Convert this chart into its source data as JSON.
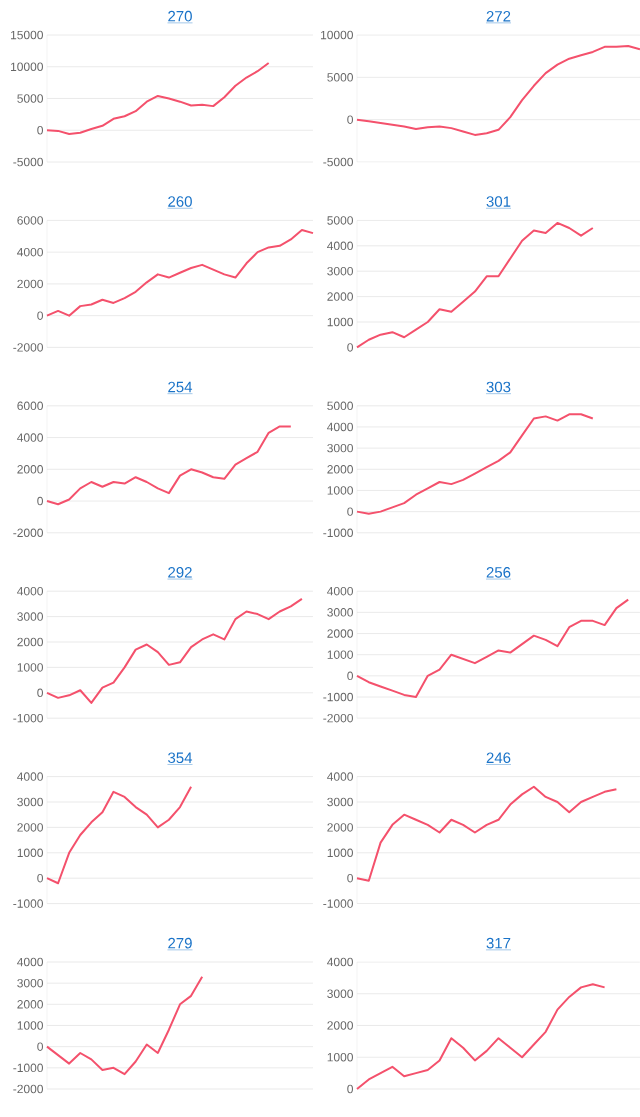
{
  "chart_data": [
    {
      "type": "line",
      "title": "270",
      "categories": [
        null,
        null,
        null,
        null,
        null,
        null,
        null,
        null,
        null,
        null,
        null,
        null,
        null,
        null,
        null,
        null,
        null,
        null,
        null,
        null,
        null,
        null,
        null,
        null,
        null
      ],
      "values": [
        0,
        -100,
        -600,
        -400,
        200,
        700,
        1800,
        2200,
        3000,
        4500,
        5400,
        5000,
        4500,
        3900,
        4000,
        3800,
        5200,
        7000,
        8300,
        9300,
        10600,
        null,
        null,
        null,
        null
      ],
      "color": "#f4516c",
      "ylim": [
        -5000,
        15000
      ],
      "yticks": [
        -5000,
        0,
        5000,
        10000,
        15000
      ],
      "grid": "y",
      "tick_labels": "y"
    },
    {
      "type": "line",
      "title": "272",
      "categories": [
        null,
        null,
        null,
        null,
        null,
        null,
        null,
        null,
        null,
        null,
        null,
        null,
        null,
        null,
        null,
        null,
        null,
        null,
        null,
        null,
        null,
        null,
        null,
        null,
        null
      ],
      "values": [
        0,
        -200,
        -400,
        -600,
        -800,
        -1100,
        -900,
        -800,
        -1000,
        -1400,
        -1800,
        -1600,
        -1200,
        300,
        2300,
        4000,
        5500,
        6500,
        7200,
        7600,
        8000,
        8600,
        8600,
        8700,
        8300
      ],
      "color": "#f4516c",
      "ylim": [
        -5000,
        10000
      ],
      "yticks": [
        -5000,
        0,
        5000,
        10000
      ],
      "grid": "y",
      "tick_labels": "y"
    },
    {
      "type": "line",
      "title": "260",
      "categories": [
        null,
        null,
        null,
        null,
        null,
        null,
        null,
        null,
        null,
        null,
        null,
        null,
        null,
        null,
        null,
        null,
        null,
        null,
        null,
        null,
        null,
        null,
        null,
        null,
        null
      ],
      "values": [
        0,
        300,
        0,
        600,
        700,
        1000,
        800,
        1100,
        1500,
        2100,
        2600,
        2400,
        2700,
        3000,
        3200,
        2900,
        2600,
        2400,
        3300,
        4000,
        4300,
        4400,
        4800,
        5400,
        5200
      ],
      "color": "#f4516c",
      "ylim": [
        -2000,
        6000
      ],
      "yticks": [
        -2000,
        0,
        2000,
        4000,
        6000
      ],
      "grid": "y",
      "tick_labels": "y"
    },
    {
      "type": "line",
      "title": "301",
      "categories": [
        null,
        null,
        null,
        null,
        null,
        null,
        null,
        null,
        null,
        null,
        null,
        null,
        null,
        null,
        null,
        null,
        null,
        null,
        null,
        null,
        null,
        null,
        null,
        null,
        null
      ],
      "values": [
        0,
        300,
        500,
        600,
        400,
        700,
        1000,
        1500,
        1400,
        1800,
        2200,
        2800,
        2800,
        3500,
        4200,
        4600,
        4500,
        4900,
        4700,
        4400,
        4700,
        null,
        null,
        null,
        null
      ],
      "color": "#f4516c",
      "ylim": [
        0,
        5000
      ],
      "yticks": [
        0,
        1000,
        2000,
        3000,
        4000,
        5000
      ],
      "grid": "y",
      "tick_labels": "y"
    },
    {
      "type": "line",
      "title": "254",
      "categories": [
        null,
        null,
        null,
        null,
        null,
        null,
        null,
        null,
        null,
        null,
        null,
        null,
        null,
        null,
        null,
        null,
        null,
        null,
        null,
        null,
        null,
        null,
        null,
        null,
        null
      ],
      "values": [
        0,
        -200,
        100,
        800,
        1200,
        900,
        1200,
        1100,
        1500,
        1200,
        800,
        500,
        1600,
        2000,
        1800,
        1500,
        1400,
        2300,
        2700,
        3100,
        4300,
        4700,
        4700,
        null,
        null
      ],
      "color": "#f4516c",
      "ylim": [
        -2000,
        6000
      ],
      "yticks": [
        -2000,
        0,
        2000,
        4000,
        6000
      ],
      "grid": "y",
      "tick_labels": "y"
    },
    {
      "type": "line",
      "title": "303",
      "categories": [
        null,
        null,
        null,
        null,
        null,
        null,
        null,
        null,
        null,
        null,
        null,
        null,
        null,
        null,
        null,
        null,
        null,
        null,
        null,
        null,
        null,
        null,
        null,
        null,
        null
      ],
      "values": [
        0,
        -100,
        0,
        200,
        400,
        800,
        1100,
        1400,
        1300,
        1500,
        1800,
        2100,
        2400,
        2800,
        3600,
        4400,
        4500,
        4300,
        4600,
        4600,
        4400,
        null,
        null,
        null,
        null
      ],
      "color": "#f4516c",
      "ylim": [
        -1000,
        5000
      ],
      "yticks": [
        -1000,
        0,
        1000,
        2000,
        3000,
        4000,
        5000
      ],
      "grid": "y",
      "tick_labels": "y"
    },
    {
      "type": "line",
      "title": "292",
      "categories": [
        null,
        null,
        null,
        null,
        null,
        null,
        null,
        null,
        null,
        null,
        null,
        null,
        null,
        null,
        null,
        null,
        null,
        null,
        null,
        null,
        null,
        null,
        null,
        null,
        null
      ],
      "values": [
        0,
        -200,
        -100,
        100,
        -400,
        200,
        400,
        1000,
        1700,
        1900,
        1600,
        1100,
        1200,
        1800,
        2100,
        2300,
        2100,
        2900,
        3200,
        3100,
        2900,
        3200,
        3400,
        3700,
        null
      ],
      "color": "#f4516c",
      "ylim": [
        -1000,
        4000
      ],
      "yticks": [
        -1000,
        0,
        1000,
        2000,
        3000,
        4000
      ],
      "grid": "y",
      "tick_labels": "y"
    },
    {
      "type": "line",
      "title": "256",
      "categories": [
        null,
        null,
        null,
        null,
        null,
        null,
        null,
        null,
        null,
        null,
        null,
        null,
        null,
        null,
        null,
        null,
        null,
        null,
        null,
        null,
        null,
        null,
        null,
        null,
        null
      ],
      "values": [
        0,
        -300,
        -500,
        -700,
        -900,
        -1000,
        0,
        300,
        1000,
        800,
        600,
        900,
        1200,
        1100,
        1500,
        1900,
        1700,
        1400,
        2300,
        2600,
        2600,
        2400,
        3200,
        3600,
        null
      ],
      "color": "#f4516c",
      "ylim": [
        -2000,
        4000
      ],
      "yticks": [
        -2000,
        -1000,
        0,
        1000,
        2000,
        3000,
        4000
      ],
      "grid": "y",
      "tick_labels": "y"
    },
    {
      "type": "line",
      "title": "354",
      "categories": [
        null,
        null,
        null,
        null,
        null,
        null,
        null,
        null,
        null,
        null,
        null,
        null,
        null,
        null,
        null,
        null,
        null,
        null,
        null,
        null,
        null,
        null,
        null,
        null,
        null
      ],
      "values": [
        0,
        -200,
        1000,
        1700,
        2200,
        2600,
        3400,
        3200,
        2800,
        2500,
        2000,
        2300,
        2800,
        3600,
        null,
        null,
        null,
        null,
        null,
        null,
        null,
        null,
        null,
        null,
        null
      ],
      "color": "#f4516c",
      "ylim": [
        -1000,
        4000
      ],
      "yticks": [
        -1000,
        0,
        1000,
        2000,
        3000,
        4000
      ],
      "grid": "y",
      "tick_labels": "y"
    },
    {
      "type": "line",
      "title": "246",
      "categories": [
        null,
        null,
        null,
        null,
        null,
        null,
        null,
        null,
        null,
        null,
        null,
        null,
        null,
        null,
        null,
        null,
        null,
        null,
        null,
        null,
        null,
        null,
        null,
        null,
        null
      ],
      "values": [
        0,
        -100,
        1400,
        2100,
        2500,
        2300,
        2100,
        1800,
        2300,
        2100,
        1800,
        2100,
        2300,
        2900,
        3300,
        3600,
        3200,
        3000,
        2600,
        3000,
        3200,
        3400,
        3500,
        null,
        null
      ],
      "color": "#f4516c",
      "ylim": [
        -1000,
        4000
      ],
      "yticks": [
        -1000,
        0,
        1000,
        2000,
        3000,
        4000
      ],
      "grid": "y",
      "tick_labels": "y"
    },
    {
      "type": "line",
      "title": "279",
      "categories": [
        null,
        null,
        null,
        null,
        null,
        null,
        null,
        null,
        null,
        null,
        null,
        null,
        null,
        null,
        null,
        null,
        null,
        null,
        null,
        null,
        null,
        null,
        null,
        null,
        null
      ],
      "values": [
        0,
        -400,
        -800,
        -300,
        -600,
        -1100,
        -1000,
        -1300,
        -700,
        100,
        -300,
        800,
        2000,
        2400,
        3300,
        null,
        null,
        null,
        null,
        null,
        null,
        null,
        null,
        null,
        null
      ],
      "color": "#f4516c",
      "ylim": [
        -2000,
        4000
      ],
      "yticks": [
        -2000,
        -1000,
        0,
        1000,
        2000,
        3000,
        4000
      ],
      "grid": "y",
      "tick_labels": "y"
    },
    {
      "type": "line",
      "title": "317",
      "categories": [
        null,
        null,
        null,
        null,
        null,
        null,
        null,
        null,
        null,
        null,
        null,
        null,
        null,
        null,
        null,
        null,
        null,
        null,
        null,
        null,
        null,
        null,
        null,
        null,
        null
      ],
      "values": [
        0,
        300,
        500,
        700,
        400,
        500,
        600,
        900,
        1600,
        1300,
        900,
        1200,
        1600,
        1300,
        1000,
        1400,
        1800,
        2500,
        2900,
        3200,
        3300,
        3200,
        null,
        null,
        null
      ],
      "color": "#f4516c",
      "ylim": [
        0,
        4000
      ],
      "yticks": [
        0,
        1000,
        2000,
        3000,
        4000
      ],
      "grid": "y",
      "tick_labels": "y"
    }
  ]
}
